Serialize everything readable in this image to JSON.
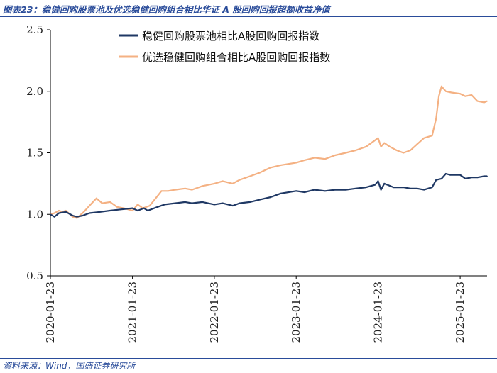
{
  "figure_title": "图表23：稳健回购股票池及优选稳健回购组合相比华证 A 股回购回报超额收益净值",
  "source": "资料来源：Wind，国盛证券研究所",
  "colors": {
    "title": "#2a4c9a",
    "series_1": "#1f3864",
    "series_2": "#f4b183"
  },
  "chart_data": {
    "type": "line",
    "title": "",
    "xlabel": "",
    "ylabel": "",
    "ylim": [
      0.5,
      2.5
    ],
    "yticks": [
      "0.5",
      "1.0",
      "1.5",
      "2.0",
      "2.5"
    ],
    "xlim": [
      "2020-01-23",
      "2025-05-23"
    ],
    "xticks": [
      "2020-01-23",
      "2021-01-23",
      "2022-01-23",
      "2023-01-23",
      "2024-01-23",
      "2025-01-23"
    ],
    "grid": false,
    "legend_position": "top-center",
    "series": [
      {
        "name": "稳健回购股票池相比A股回购回报指数",
        "color": "#1f3864",
        "points": [
          [
            "2020-01-23",
            1.0
          ],
          [
            "2020-02-10",
            0.98
          ],
          [
            "2020-03-01",
            1.01
          ],
          [
            "2020-04-01",
            1.02
          ],
          [
            "2020-05-01",
            0.99
          ],
          [
            "2020-05-20",
            0.98
          ],
          [
            "2020-06-15",
            0.99
          ],
          [
            "2020-07-15",
            1.01
          ],
          [
            "2020-09-01",
            1.02
          ],
          [
            "2020-10-15",
            1.03
          ],
          [
            "2020-12-01",
            1.04
          ],
          [
            "2021-01-23",
            1.05
          ],
          [
            "2021-02-15",
            1.03
          ],
          [
            "2021-03-15",
            1.05
          ],
          [
            "2021-04-01",
            1.03
          ],
          [
            "2021-05-15",
            1.06
          ],
          [
            "2021-06-15",
            1.08
          ],
          [
            "2021-08-01",
            1.09
          ],
          [
            "2021-09-15",
            1.1
          ],
          [
            "2021-10-15",
            1.09
          ],
          [
            "2021-12-01",
            1.1
          ],
          [
            "2022-01-23",
            1.08
          ],
          [
            "2022-03-01",
            1.09
          ],
          [
            "2022-04-15",
            1.07
          ],
          [
            "2022-05-15",
            1.09
          ],
          [
            "2022-07-01",
            1.1
          ],
          [
            "2022-08-15",
            1.12
          ],
          [
            "2022-10-01",
            1.14
          ],
          [
            "2022-11-15",
            1.17
          ],
          [
            "2023-01-23",
            1.19
          ],
          [
            "2023-03-01",
            1.18
          ],
          [
            "2023-04-15",
            1.2
          ],
          [
            "2023-06-01",
            1.19
          ],
          [
            "2023-07-15",
            1.2
          ],
          [
            "2023-09-01",
            1.2
          ],
          [
            "2023-10-15",
            1.21
          ],
          [
            "2023-12-01",
            1.22
          ],
          [
            "2024-01-10",
            1.24
          ],
          [
            "2024-01-23",
            1.27
          ],
          [
            "2024-02-05",
            1.2
          ],
          [
            "2024-02-20",
            1.25
          ],
          [
            "2024-04-01",
            1.22
          ],
          [
            "2024-05-15",
            1.22
          ],
          [
            "2024-06-15",
            1.21
          ],
          [
            "2024-07-15",
            1.21
          ],
          [
            "2024-08-15",
            1.2
          ],
          [
            "2024-09-20",
            1.22
          ],
          [
            "2024-10-08",
            1.28
          ],
          [
            "2024-11-01",
            1.29
          ],
          [
            "2024-11-20",
            1.33
          ],
          [
            "2024-12-10",
            1.32
          ],
          [
            "2025-01-23",
            1.32
          ],
          [
            "2025-02-15",
            1.29
          ],
          [
            "2025-03-15",
            1.3
          ],
          [
            "2025-04-10",
            1.3
          ],
          [
            "2025-05-10",
            1.31
          ],
          [
            "2025-05-23",
            1.31
          ]
        ]
      },
      {
        "name": "优选稳健回购组合相比A股回购回报指数",
        "color": "#f4b183",
        "points": [
          [
            "2020-01-23",
            1.0
          ],
          [
            "2020-02-10",
            1.01
          ],
          [
            "2020-03-01",
            1.03
          ],
          [
            "2020-03-15",
            1.02
          ],
          [
            "2020-04-01",
            1.03
          ],
          [
            "2020-05-01",
            0.98
          ],
          [
            "2020-05-20",
            0.97
          ],
          [
            "2020-06-20",
            1.02
          ],
          [
            "2020-07-15",
            1.07
          ],
          [
            "2020-08-15",
            1.13
          ],
          [
            "2020-09-10",
            1.09
          ],
          [
            "2020-10-15",
            1.1
          ],
          [
            "2020-11-15",
            1.06
          ],
          [
            "2020-12-15",
            1.05
          ],
          [
            "2021-01-23",
            1.03
          ],
          [
            "2021-02-15",
            1.08
          ],
          [
            "2021-03-10",
            1.05
          ],
          [
            "2021-04-10",
            1.07
          ],
          [
            "2021-05-15",
            1.15
          ],
          [
            "2021-06-01",
            1.19
          ],
          [
            "2021-07-01",
            1.19
          ],
          [
            "2021-08-01",
            1.2
          ],
          [
            "2021-09-15",
            1.21
          ],
          [
            "2021-10-15",
            1.2
          ],
          [
            "2021-12-01",
            1.23
          ],
          [
            "2022-01-23",
            1.25
          ],
          [
            "2022-03-01",
            1.27
          ],
          [
            "2022-04-15",
            1.25
          ],
          [
            "2022-05-15",
            1.28
          ],
          [
            "2022-07-01",
            1.31
          ],
          [
            "2022-08-15",
            1.34
          ],
          [
            "2022-10-01",
            1.38
          ],
          [
            "2022-11-15",
            1.4
          ],
          [
            "2023-01-23",
            1.42
          ],
          [
            "2023-03-01",
            1.44
          ],
          [
            "2023-04-15",
            1.46
          ],
          [
            "2023-06-01",
            1.45
          ],
          [
            "2023-07-15",
            1.48
          ],
          [
            "2023-09-01",
            1.5
          ],
          [
            "2023-10-15",
            1.52
          ],
          [
            "2023-12-01",
            1.55
          ],
          [
            "2024-01-23",
            1.62
          ],
          [
            "2024-02-05",
            1.55
          ],
          [
            "2024-02-20",
            1.58
          ],
          [
            "2024-03-15",
            1.55
          ],
          [
            "2024-04-15",
            1.52
          ],
          [
            "2024-05-15",
            1.5
          ],
          [
            "2024-06-15",
            1.52
          ],
          [
            "2024-07-15",
            1.57
          ],
          [
            "2024-08-15",
            1.62
          ],
          [
            "2024-09-20",
            1.64
          ],
          [
            "2024-10-08",
            1.78
          ],
          [
            "2024-10-20",
            1.96
          ],
          [
            "2024-11-01",
            2.04
          ],
          [
            "2024-11-20",
            2.0
          ],
          [
            "2024-12-15",
            1.99
          ],
          [
            "2025-01-23",
            1.98
          ],
          [
            "2025-02-15",
            1.96
          ],
          [
            "2025-03-15",
            1.97
          ],
          [
            "2025-04-10",
            1.92
          ],
          [
            "2025-05-10",
            1.91
          ],
          [
            "2025-05-23",
            1.92
          ]
        ]
      }
    ]
  }
}
